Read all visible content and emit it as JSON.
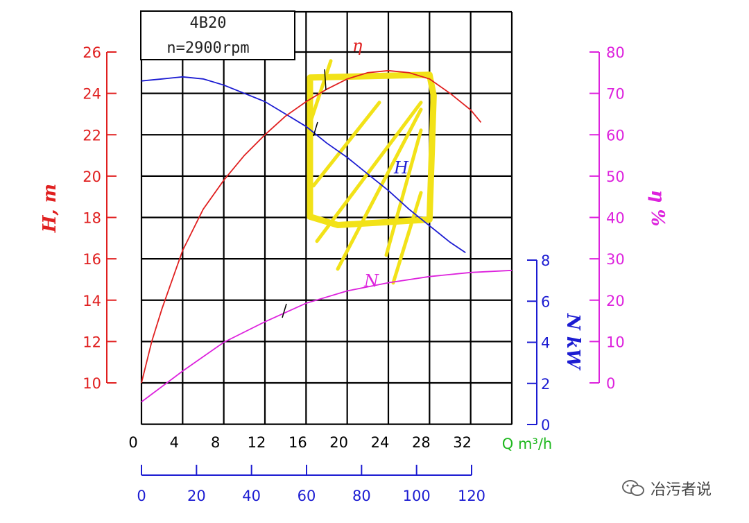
{
  "chart_data": {
    "type": "line",
    "title": "4B20",
    "subtitle": "n=2900rpm",
    "x": [
      0,
      2,
      4,
      6,
      8,
      10,
      12,
      14,
      16,
      18,
      20,
      22,
      24,
      26,
      28,
      30,
      32,
      34,
      36
    ],
    "xlabel": "Q m³/h",
    "xlim": [
      0,
      36
    ],
    "x_ticks": [
      0,
      4,
      8,
      12,
      16,
      20,
      24,
      28,
      32
    ],
    "x2_ticks": [
      0,
      20,
      40,
      60,
      80,
      100,
      120
    ],
    "series": [
      {
        "name": "H",
        "axis": "left",
        "color": "#1c1cd2",
        "points": [
          [
            0,
            24.6
          ],
          [
            2,
            24.7
          ],
          [
            4,
            24.8
          ],
          [
            6,
            24.7
          ],
          [
            8,
            24.4
          ],
          [
            10,
            24.0
          ],
          [
            12,
            23.6
          ],
          [
            14,
            23.0
          ],
          [
            16,
            22.4
          ],
          [
            18,
            21.6
          ],
          [
            20,
            20.9
          ],
          [
            22,
            20.1
          ],
          [
            24,
            19.3
          ],
          [
            26,
            18.4
          ],
          [
            28,
            17.6
          ],
          [
            30,
            16.8
          ],
          [
            31.5,
            16.3
          ]
        ]
      },
      {
        "name": "η",
        "axis": "right_eta",
        "color": "#e02020",
        "points": [
          [
            0,
            0
          ],
          [
            1,
            10
          ],
          [
            2,
            18
          ],
          [
            4,
            32
          ],
          [
            6,
            42
          ],
          [
            8,
            49
          ],
          [
            10,
            55
          ],
          [
            12,
            60
          ],
          [
            14,
            64.5
          ],
          [
            16,
            68
          ],
          [
            18,
            71
          ],
          [
            20,
            73.5
          ],
          [
            22,
            75
          ],
          [
            24,
            75.5
          ],
          [
            26,
            75
          ],
          [
            28,
            73.5
          ],
          [
            30,
            70
          ],
          [
            32,
            66
          ],
          [
            33,
            63
          ]
        ]
      },
      {
        "name": "N",
        "axis": "right_power",
        "color": "#dd22dd",
        "points": [
          [
            0,
            1.1
          ],
          [
            4,
            2.6
          ],
          [
            8,
            4.0
          ],
          [
            12,
            5.0
          ],
          [
            16,
            5.9
          ],
          [
            20,
            6.5
          ],
          [
            24,
            6.9
          ],
          [
            28,
            7.2
          ],
          [
            32,
            7.4
          ],
          [
            36,
            7.5
          ]
        ]
      }
    ],
    "left_axis": {
      "label": "H, m",
      "ticks": [
        10,
        12,
        14,
        16,
        18,
        20,
        22,
        24,
        26
      ],
      "ylim": [
        8,
        26
      ],
      "color": "#e02020"
    },
    "right_axis_eta": {
      "label": "η %",
      "ticks": [
        0,
        10,
        20,
        30,
        40,
        50,
        60,
        70,
        80
      ],
      "ylim": [
        0,
        80
      ],
      "color": "#dd22dd"
    },
    "right_axis_power": {
      "label": "N kW",
      "ticks": [
        0,
        2,
        4,
        6,
        8
      ],
      "ylim": [
        0,
        8
      ],
      "color": "#1c1cd2"
    },
    "grid": true,
    "colors": {
      "grid": "#000000",
      "q_label": "#1fb81f",
      "highlight": "#f2e218"
    },
    "annotations": {
      "curve_labels": {
        "eta": "η",
        "head": "H",
        "power": "N"
      },
      "highlight_box_x": [
        18,
        28
      ],
      "highlight_box_y_head": [
        17.9,
        24.9
      ]
    }
  },
  "watermark": {
    "text": "冶污者说",
    "icon": "wechat-icon"
  }
}
